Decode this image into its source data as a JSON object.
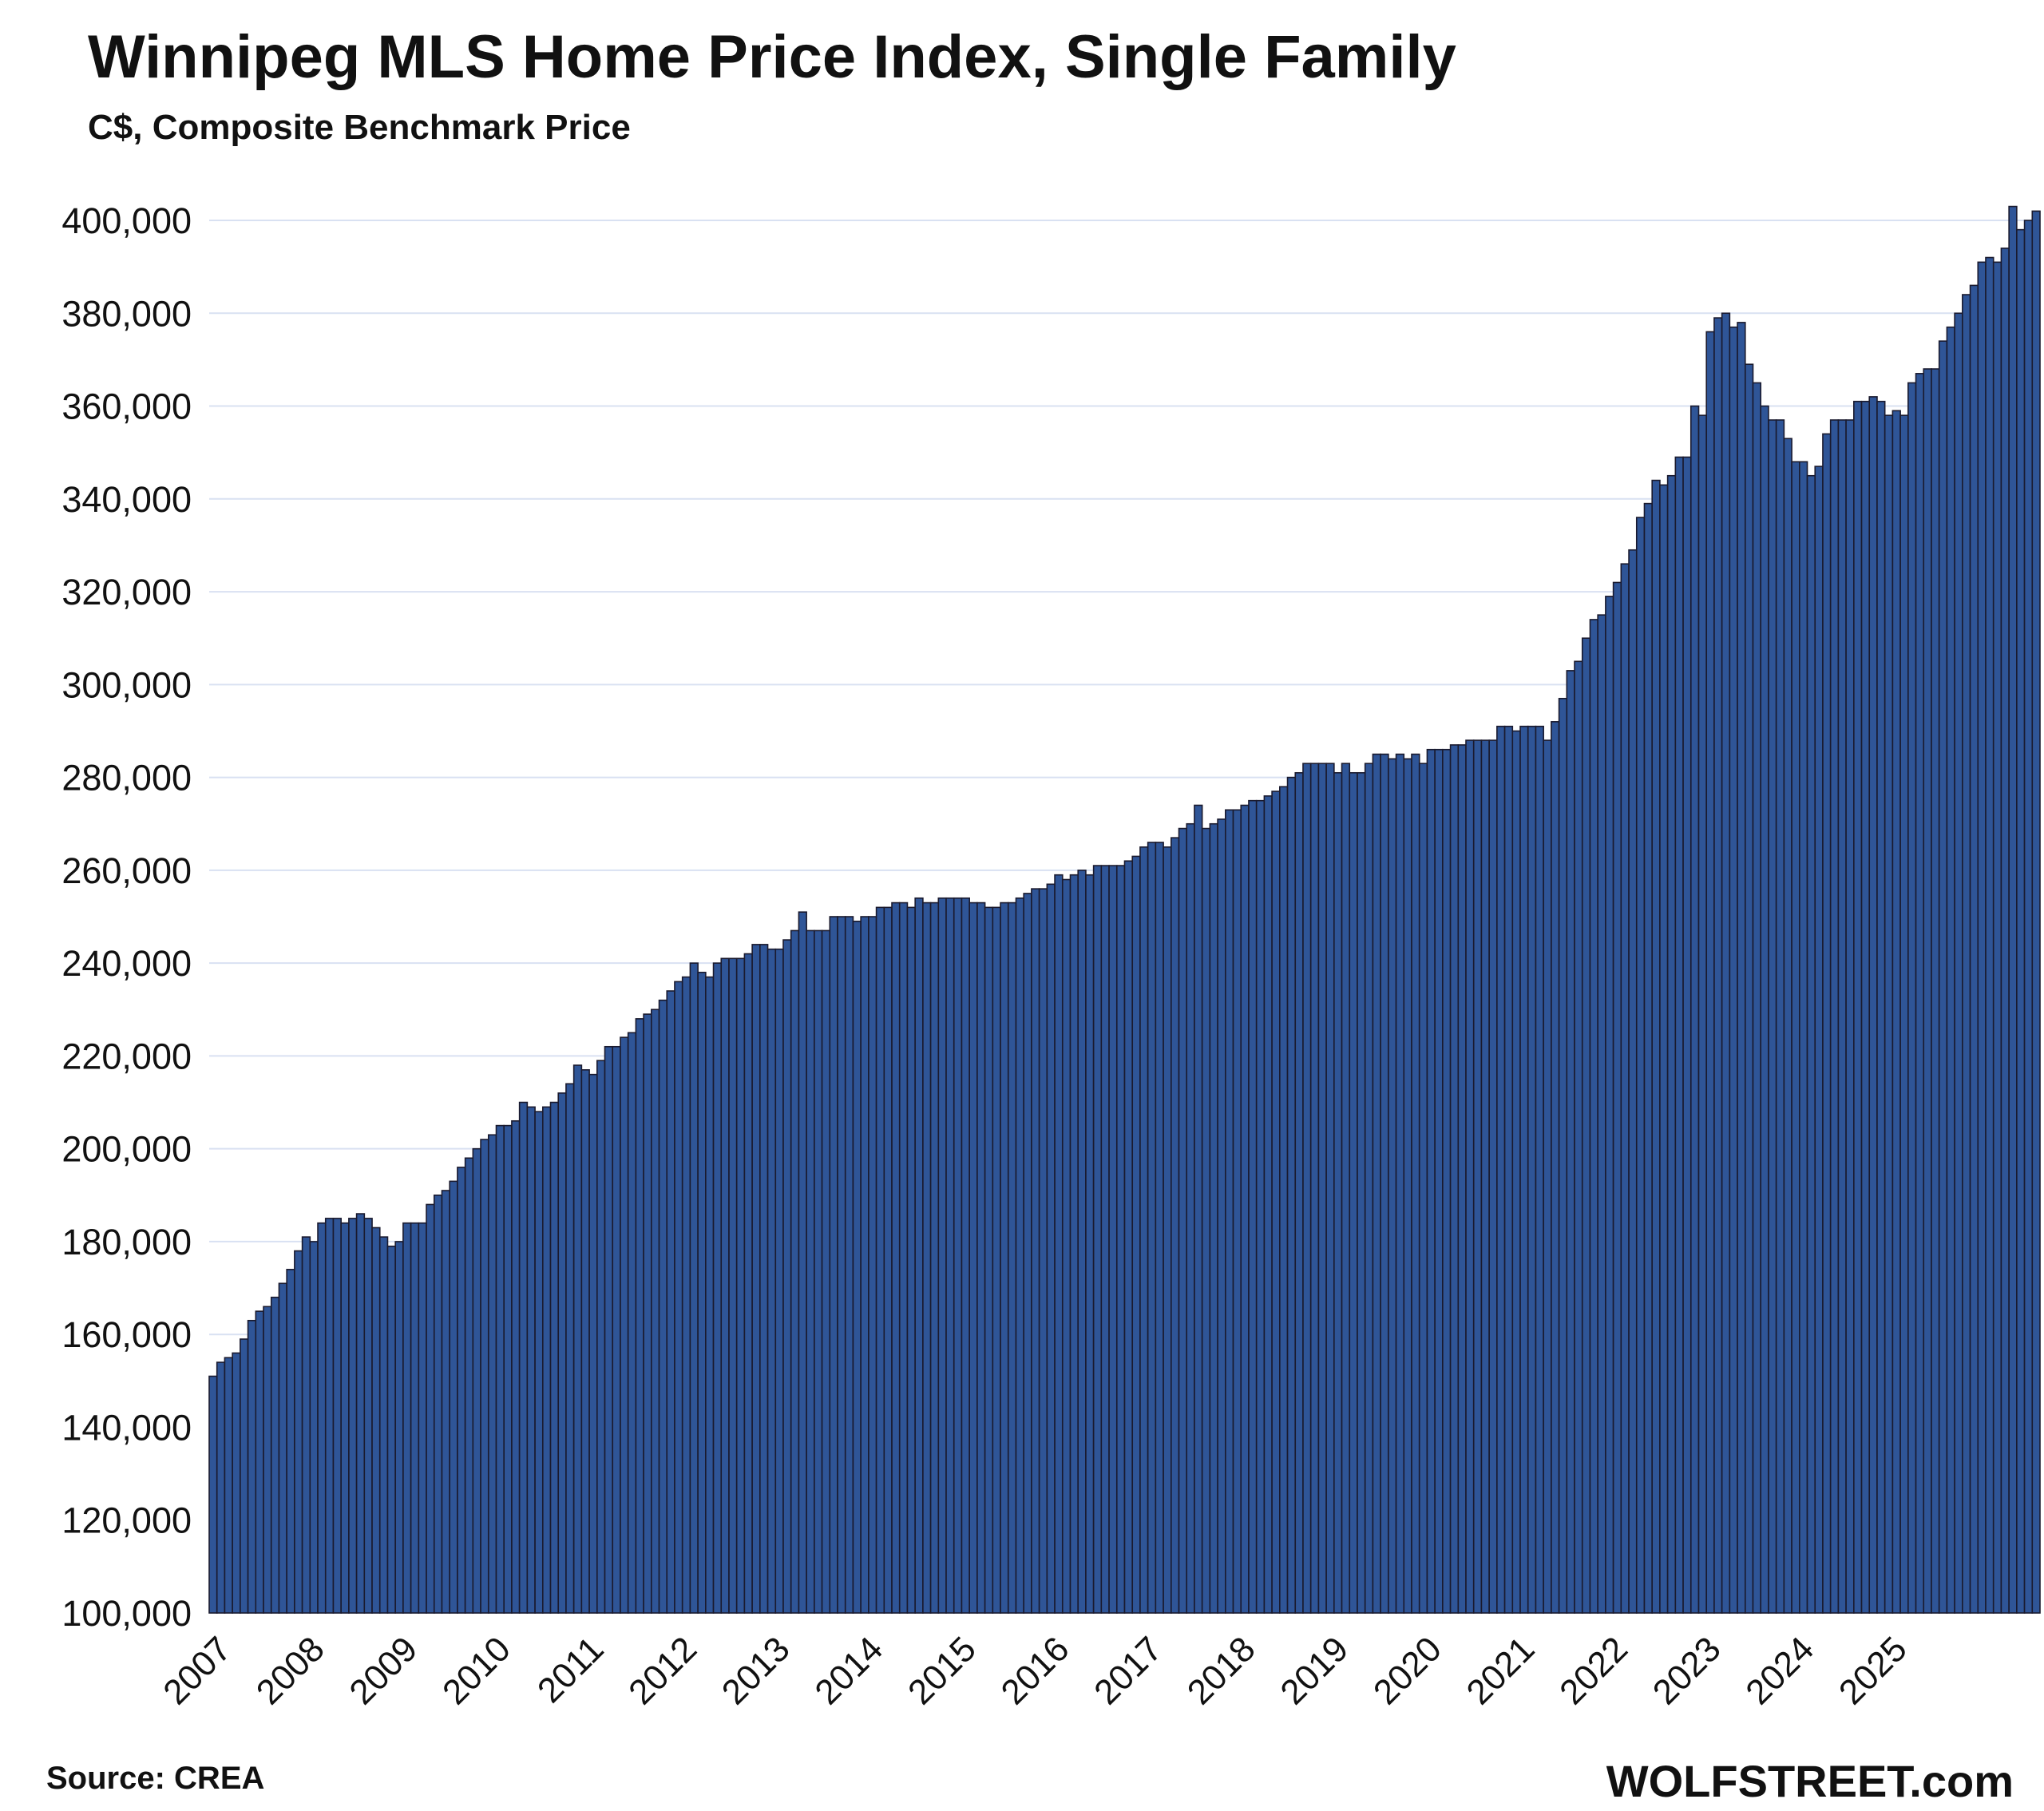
{
  "header": {
    "title": "Winnipeg MLS Home Price Index, Single Family",
    "subtitle": "C$, Composite Benchmark Price"
  },
  "footer": {
    "source": "Source: CREA",
    "brand": "WOLFSTREET.com"
  },
  "colors": {
    "bar_fill": "#2f5597",
    "bar_stroke": "#1a1a2e",
    "grid": "#d9e1f2"
  },
  "chart_data": {
    "type": "bar",
    "title": "Winnipeg MLS Home Price Index, Single Family",
    "subtitle": "C$, Composite Benchmark Price",
    "ylim": [
      100000,
      400000
    ],
    "y_ticks": [
      100000,
      120000,
      140000,
      160000,
      180000,
      200000,
      220000,
      240000,
      260000,
      280000,
      300000,
      320000,
      340000,
      360000,
      380000,
      400000
    ],
    "y_tick_labels": [
      "100,000",
      "120,000",
      "140,000",
      "160,000",
      "180,000",
      "200,000",
      "220,000",
      "240,000",
      "260,000",
      "280,000",
      "300,000",
      "320,000",
      "340,000",
      "360,000",
      "380,000",
      "400,000"
    ],
    "x_tick_labels": [
      "2007",
      "2008",
      "2009",
      "2010",
      "2011",
      "2012",
      "2013",
      "2014",
      "2015",
      "2016",
      "2017",
      "2018",
      "2019",
      "2020",
      "2021",
      "2022",
      "2023",
      "2024",
      "2025"
    ],
    "grid": true,
    "start": "2007-01",
    "frequency": "monthly",
    "values": [
      151000,
      154000,
      155000,
      156000,
      159000,
      163000,
      165000,
      166000,
      168000,
      171000,
      174000,
      178000,
      181000,
      180000,
      184000,
      185000,
      185000,
      184000,
      185000,
      186000,
      185000,
      183000,
      181000,
      179000,
      180000,
      184000,
      184000,
      184000,
      188000,
      190000,
      191000,
      193000,
      196000,
      198000,
      200000,
      202000,
      203000,
      205000,
      205000,
      206000,
      210000,
      209000,
      208000,
      209000,
      210000,
      212000,
      214000,
      218000,
      217000,
      216000,
      219000,
      222000,
      222000,
      224000,
      225000,
      228000,
      229000,
      230000,
      232000,
      234000,
      236000,
      237000,
      240000,
      238000,
      237000,
      240000,
      241000,
      241000,
      241000,
      242000,
      244000,
      244000,
      243000,
      243000,
      245000,
      247000,
      251000,
      247000,
      247000,
      247000,
      250000,
      250000,
      250000,
      249000,
      250000,
      250000,
      252000,
      252000,
      253000,
      253000,
      252000,
      254000,
      253000,
      253000,
      254000,
      254000,
      254000,
      254000,
      253000,
      253000,
      252000,
      252000,
      253000,
      253000,
      254000,
      255000,
      256000,
      256000,
      257000,
      259000,
      258000,
      259000,
      260000,
      259000,
      261000,
      261000,
      261000,
      261000,
      262000,
      263000,
      265000,
      266000,
      266000,
      265000,
      267000,
      269000,
      270000,
      274000,
      269000,
      270000,
      271000,
      273000,
      273000,
      274000,
      275000,
      275000,
      276000,
      277000,
      278000,
      280000,
      281000,
      283000,
      283000,
      283000,
      283000,
      281000,
      283000,
      281000,
      281000,
      283000,
      285000,
      285000,
      284000,
      285000,
      284000,
      285000,
      283000,
      286000,
      286000,
      286000,
      287000,
      287000,
      288000,
      288000,
      288000,
      288000,
      291000,
      291000,
      290000,
      291000,
      291000,
      291000,
      288000,
      292000,
      297000,
      303000,
      305000,
      310000,
      314000,
      315000,
      319000,
      322000,
      326000,
      329000,
      336000,
      339000,
      344000,
      343000,
      345000,
      349000,
      349000,
      360000,
      358000,
      376000,
      379000,
      380000,
      377000,
      378000,
      369000,
      365000,
      360000,
      357000,
      357000,
      353000,
      348000,
      348000,
      345000,
      347000,
      354000,
      357000,
      357000,
      357000,
      361000,
      361000,
      362000,
      361000,
      358000,
      359000,
      358000,
      365000,
      367000,
      368000,
      368000,
      374000,
      377000,
      380000,
      384000,
      386000,
      391000,
      392000,
      391000,
      394000,
      403000,
      398000,
      400000,
      402000
    ]
  }
}
